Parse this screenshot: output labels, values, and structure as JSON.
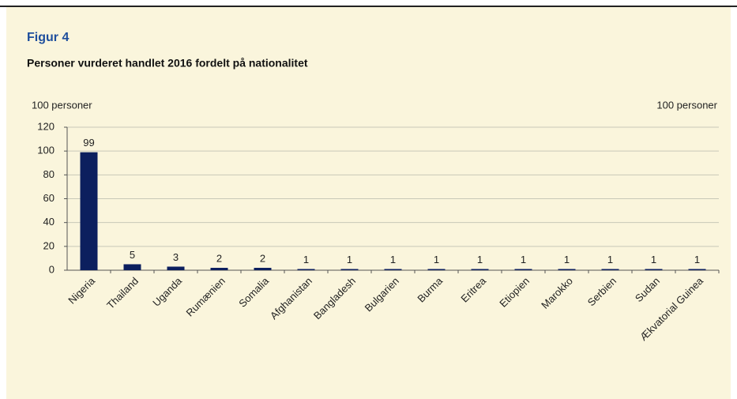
{
  "chart_data": {
    "type": "bar",
    "title": "Figur 4",
    "subtitle": "Personer vurderet handlet 2016 fordelt på nationalitet",
    "y_label": "100 personer",
    "y2_label": "100 personer",
    "categories": [
      "Nigeria",
      "Thailand",
      "Uganda",
      "Rumænien",
      "Somalia",
      "Afghanistan",
      "Bangladesh",
      "Bulgarien",
      "Burma",
      "Eritrea",
      "Etiopien",
      "Marokko",
      "Serbien",
      "Sudan",
      "Ækvatorial Guinea"
    ],
    "values": [
      99,
      5,
      3,
      2,
      2,
      1,
      1,
      1,
      1,
      1,
      1,
      1,
      1,
      1,
      1
    ],
    "color": "#0c1f5e",
    "ylim": [
      0,
      120
    ],
    "yticks": [
      0,
      20,
      40,
      60,
      80,
      100,
      120
    ],
    "grid": true
  }
}
